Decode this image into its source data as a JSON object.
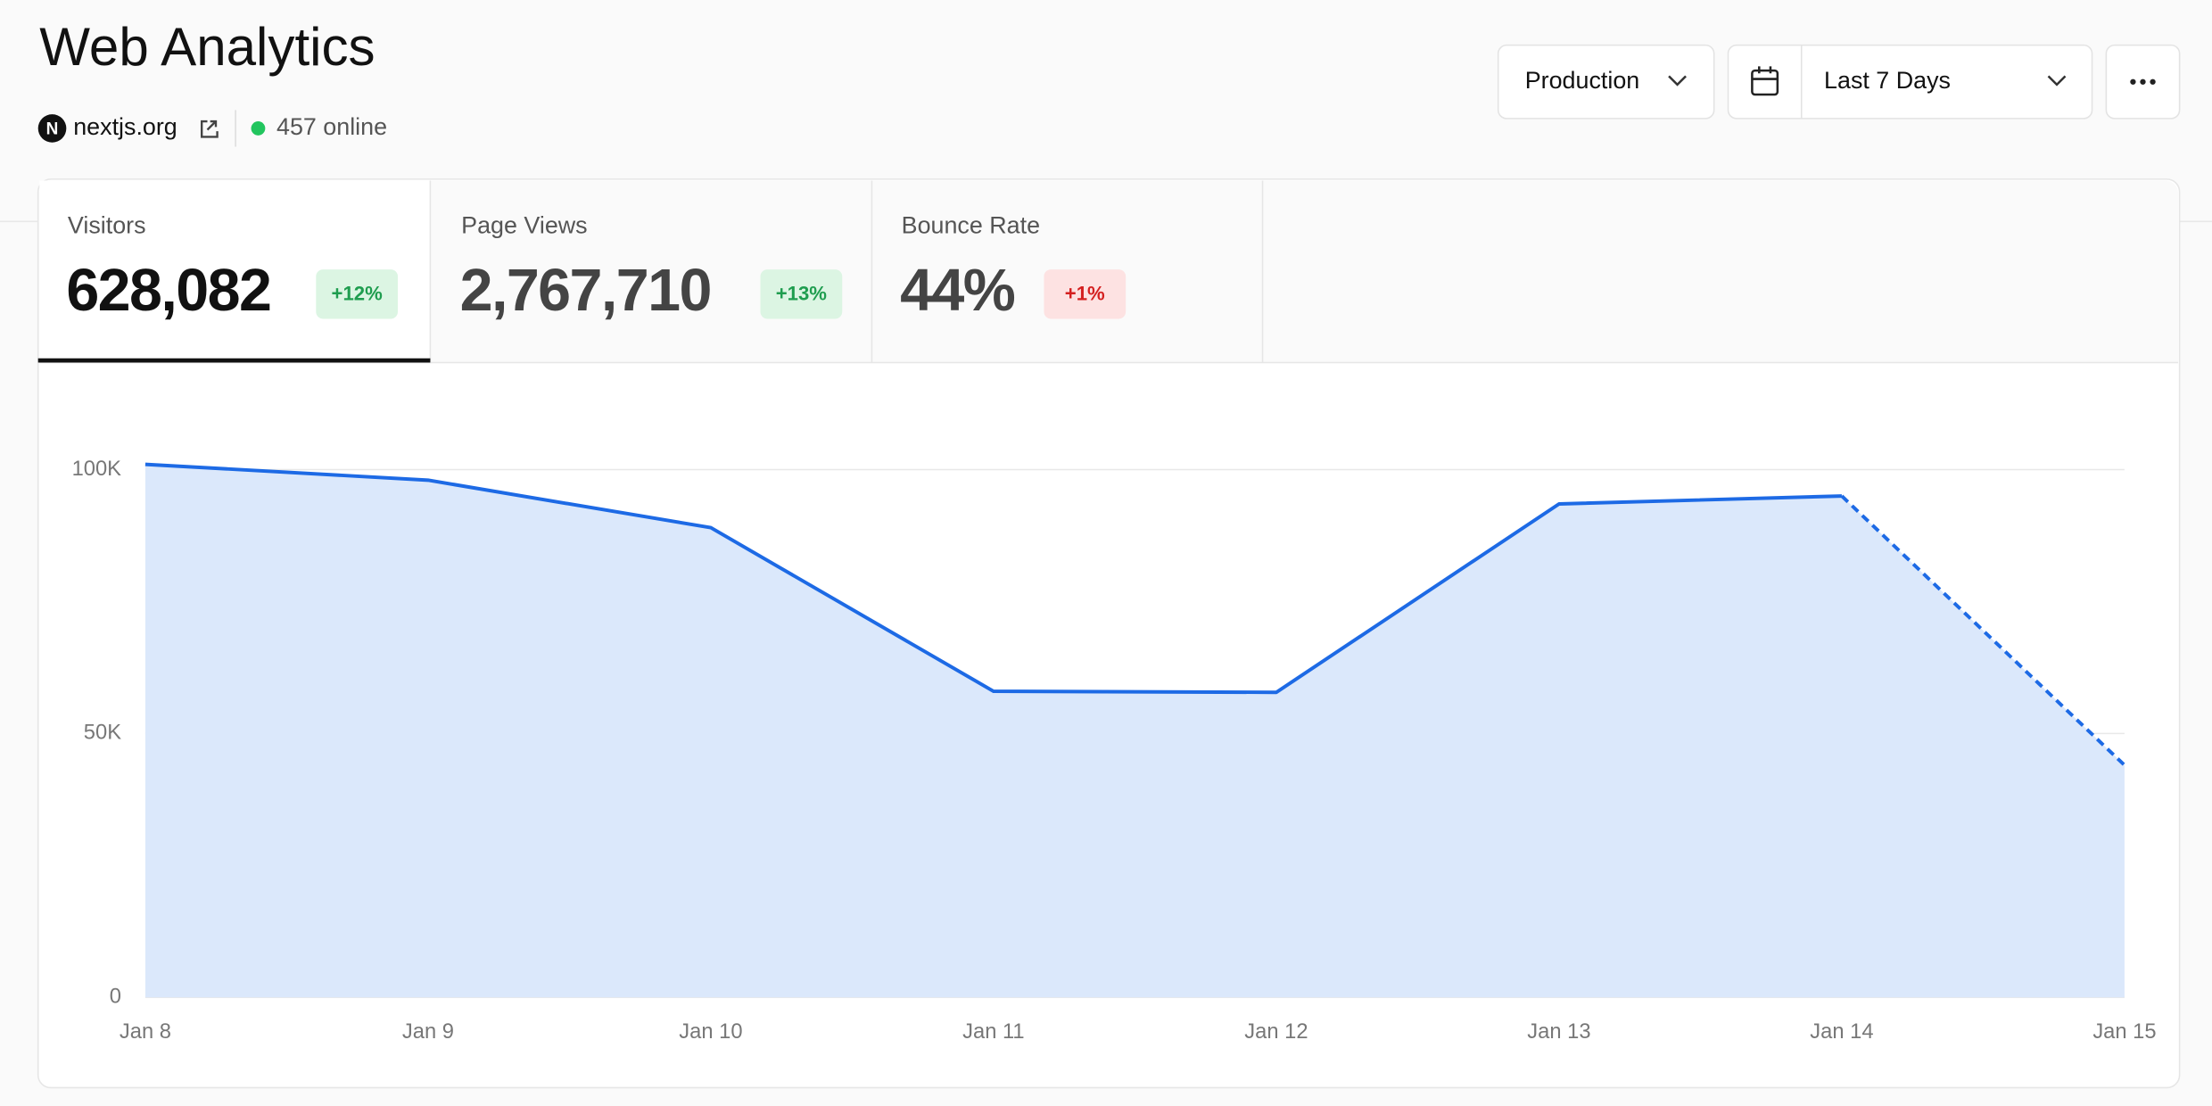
{
  "header": {
    "title": "Web Analytics",
    "site": "nextjs.org",
    "online": "457 online"
  },
  "controls": {
    "environment": "Production",
    "range": "Last 7 Days"
  },
  "metrics": [
    {
      "label": "Visitors",
      "value": "628,082",
      "change": "+12%"
    },
    {
      "label": "Page Views",
      "value": "2,767,710",
      "change": "+13%"
    },
    {
      "label": "Bounce Rate",
      "value": "44%",
      "change": "+1%"
    }
  ],
  "chart_data": {
    "type": "area",
    "x": [
      "Jan 8",
      "Jan 9",
      "Jan 10",
      "Jan 11",
      "Jan 12",
      "Jan 13",
      "Jan 14",
      "Jan 15"
    ],
    "series": [
      {
        "name": "Visitors",
        "color": "#1d6ae5",
        "values": [
          101000,
          98000,
          89000,
          58000,
          57800,
          93500,
          95000,
          44000
        ]
      }
    ],
    "fill_color": "#dbe8fb",
    "dashed_last_segment": true,
    "ylim": [
      0,
      112000
    ],
    "yticks": [
      0,
      {
        "value": 50000,
        "label": "50K"
      },
      {
        "value": 100000,
        "label": "100K"
      }
    ],
    "grid": true
  }
}
